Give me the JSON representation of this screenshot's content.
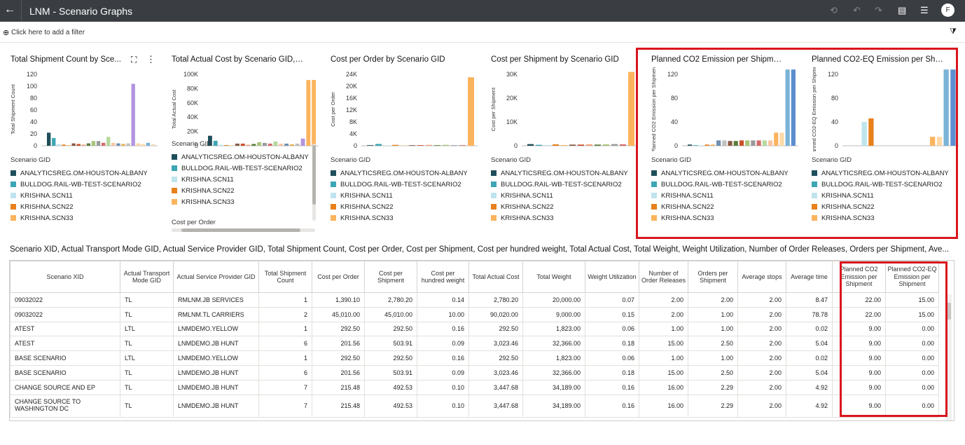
{
  "header": {
    "title": "LNM - Scenario Graphs",
    "back_icon": "←",
    "avatar": "F"
  },
  "filter": {
    "placeholder": "Click here to add a filter"
  },
  "legend_title": "Scenario GID",
  "legend_items": [
    {
      "label": "ANALYTICSREG.OM-HOUSTON-ALBANY",
      "color": "#1f4e5a"
    },
    {
      "label": "BULLDOG.RAIL-WB-TEST-SCENARIO2",
      "color": "#3ea5b5"
    },
    {
      "label": "KRISHNA.SCN11",
      "color": "#bfe4ee"
    },
    {
      "label": "KRISHNA.SCN22",
      "color": "#e8801c"
    },
    {
      "label": "KRISHNA.SCN33",
      "color": "#fbb45e"
    }
  ],
  "charts": [
    {
      "title": "Total Shipment Count by Sce...",
      "ylabel": "Total Shipment Count",
      "yticks": [
        "120",
        "100",
        "80",
        "60",
        "40",
        "20",
        "0"
      ],
      "ymax": 120,
      "values": [
        22,
        13,
        3,
        2,
        1,
        4,
        3,
        2,
        4,
        8,
        8,
        5,
        15,
        5,
        4,
        3,
        4,
        104,
        4,
        3,
        5,
        3
      ],
      "colors": [
        "#1f4e5a",
        "#3ea5b5",
        "#bfe4ee",
        "#e8801c",
        "#fbb45e",
        "#8a5a44",
        "#c94f2b",
        "#f4a07a",
        "#5a7d3a",
        "#a8c47a",
        "#9a9a9a",
        "#d46a6a",
        "#b5d99c",
        "#f7c6a3",
        "#6e8fb0",
        "#e2b04a",
        "#c0c0c0",
        "#b394e0",
        "#fcd3a0",
        "#ffd9a8",
        "#7bb3d6",
        "#f0e0c0"
      ]
    },
    {
      "title": "Total Actual Cost by Scenario GID, C...",
      "ylabel": "Total Actual Cost",
      "yticks": [
        "100K",
        "80K",
        "60K",
        "40K",
        "20K",
        "0"
      ],
      "ymax": 100000,
      "values": [
        14000,
        7000,
        1500,
        1000,
        500,
        3000,
        3000,
        1500,
        2500,
        5000,
        4000,
        3000,
        6000,
        3000,
        3000,
        2000,
        3000,
        10000,
        92000,
        92000
      ],
      "colors": [
        "#1f4e5a",
        "#3ea5b5",
        "#bfe4ee",
        "#e8801c",
        "#fbb45e",
        "#8a5a44",
        "#c94f2b",
        "#f4a07a",
        "#5a7d3a",
        "#a8c47a",
        "#9a9a9a",
        "#d46a6a",
        "#b5d99c",
        "#f7c6a3",
        "#6e8fb0",
        "#e2b04a",
        "#c0c0c0",
        "#b394e0",
        "#fbb45e",
        "#fbb45e"
      ]
    },
    {
      "title": "Cost per Order by Scenario GID",
      "ylabel": "Cost per Order",
      "yticks": [
        "24K",
        "20K",
        "16K",
        "12K",
        "8K",
        "4K",
        "0"
      ],
      "ymax": 24000,
      "values": [
        200,
        600,
        100,
        300,
        100,
        200,
        200,
        300,
        200,
        300,
        200,
        200,
        23000
      ],
      "colors": [
        "#1f4e5a",
        "#3ea5b5",
        "#bfe4ee",
        "#e8801c",
        "#fbb45e",
        "#8a5a44",
        "#c94f2b",
        "#f4a07a",
        "#5a7d3a",
        "#a8c47a",
        "#9a9a9a",
        "#d46a6a",
        "#fbb45e"
      ]
    },
    {
      "title": "Cost per Shipment by Scenario GID",
      "ylabel": "Cost per Shipment",
      "yticks": [
        "30K",
        "20K",
        "10K",
        "0"
      ],
      "ymax": 35000,
      "values": [
        700,
        400,
        300,
        600,
        300,
        500,
        500,
        600,
        500,
        600,
        700,
        600,
        31000
      ],
      "colors": [
        "#1f4e5a",
        "#3ea5b5",
        "#bfe4ee",
        "#e8801c",
        "#fbb45e",
        "#8a5a44",
        "#c94f2b",
        "#f4a07a",
        "#5a7d3a",
        "#a8c47a",
        "#9a9a9a",
        "#d46a6a",
        "#fbb45e"
      ]
    },
    {
      "title": "Planned CO2 Emission per Shipment...",
      "ylabel": "Planned CO2 Emission per Shipment",
      "yticks": [
        "120",
        "80",
        "40",
        "0"
      ],
      "ymax": 145,
      "values": [
        2,
        1,
        1,
        2,
        2,
        9,
        9,
        8,
        8,
        9,
        9,
        9,
        9,
        9,
        9,
        22,
        22,
        128,
        128
      ],
      "colors": [
        "#1f4e5a",
        "#3ea5b5",
        "#bfe4ee",
        "#e8801c",
        "#fbb45e",
        "#6e8fb0",
        "#c0c0c0",
        "#8a5a44",
        "#5a7d3a",
        "#c94f2b",
        "#a8c47a",
        "#9a9a9a",
        "#d46a6a",
        "#b5d99c",
        "#f7c6a3",
        "#fbb45e",
        "#ffd9a8",
        "#7bb3d6",
        "#5b8fd0"
      ]
    },
    {
      "title": "Planned CO2-EQ Emission per Ship...",
      "ylabel": "Planned CO2-EQ Emission per Shipment",
      "yticks": [
        "120",
        "80",
        "40",
        "0"
      ],
      "ymax": 145,
      "values": [
        0,
        0,
        40,
        46,
        0,
        0,
        0,
        0,
        0,
        0,
        0,
        0,
        15,
        15,
        128,
        128
      ],
      "colors": [
        "#1f4e5a",
        "#3ea5b5",
        "#bfe4ee",
        "#e8801c",
        "#fbb45e",
        "#6e8fb0",
        "#c0c0c0",
        "#8a5a44",
        "#5a7d3a",
        "#c94f2b",
        "#a8c47a",
        "#9a9a9a",
        "#fbb45e",
        "#ffd9a8",
        "#7bb3d6",
        "#5b8fd0"
      ]
    }
  ],
  "card2_extra_label": "Cost per Order",
  "table": {
    "title": "Scenario XID, Actual Transport Mode GID, Actual Service Provider GID, Total Shipment Count, Cost per Order, Cost per Shipment, Cost per hundred weight, Total Actual Cost, Total Weight, Weight Utilization, Number of Order Releases, Orders per Shipment, Ave...",
    "headers": [
      "Scenario XID",
      "Actual Transport Mode GID",
      "Actual Service Provider GID",
      "Total Shipment Count",
      "Cost per Order",
      "Cost per Shipment",
      "Cost per hundred weight",
      "Total Actual Cost",
      "Total Weight",
      "Weight Utilization",
      "Number of Order Releases",
      "Orders per Shipment",
      "Average stops",
      "Average time",
      "Planned CO2 Emission per Shipment",
      "Planned CO2-EQ Emission per Shipment"
    ],
    "rows": [
      [
        "09032022",
        "TL",
        "RMLNM.JB SERVICES",
        "1",
        "1,390.10",
        "2,780.20",
        "0.14",
        "2,780.20",
        "20,000.00",
        "0.07",
        "2.00",
        "2.00",
        "2.00",
        "8.47",
        "22.00",
        "15.00"
      ],
      [
        "09032022",
        "TL",
        "RMLNM.TL CARRIERS",
        "2",
        "45,010.00",
        "45,010.00",
        "10.00",
        "90,020.00",
        "9,000.00",
        "0.15",
        "2.00",
        "1.00",
        "2.00",
        "78.78",
        "22.00",
        "15.00"
      ],
      [
        "ATEST",
        "LTL",
        "LNMDEMO.YELLOW",
        "1",
        "292.50",
        "292.50",
        "0.16",
        "292.50",
        "1,823.00",
        "0.06",
        "1.00",
        "1.00",
        "2.00",
        "0.02",
        "9.00",
        "0.00"
      ],
      [
        "ATEST",
        "TL",
        "LNMDEMO.JB HUNT",
        "6",
        "201.56",
        "503.91",
        "0.09",
        "3,023.46",
        "32,366.00",
        "0.18",
        "15.00",
        "2.50",
        "2.00",
        "5.04",
        "9.00",
        "0.00"
      ],
      [
        "BASE SCENARIO",
        "LTL",
        "LNMDEMO.YELLOW",
        "1",
        "292.50",
        "292.50",
        "0.16",
        "292.50",
        "1,823.00",
        "0.06",
        "1.00",
        "1.00",
        "2.00",
        "0.02",
        "9.00",
        "0.00"
      ],
      [
        "BASE SCENARIO",
        "TL",
        "LNMDEMO.JB HUNT",
        "6",
        "201.56",
        "503.91",
        "0.09",
        "3,023.46",
        "32,366.00",
        "0.18",
        "15.00",
        "2.50",
        "2.00",
        "5.04",
        "9.00",
        "0.00"
      ],
      [
        "CHANGE SOURCE AND EP",
        "TL",
        "LNMDEMO.JB HUNT",
        "7",
        "215.48",
        "492.53",
        "0.10",
        "3,447.68",
        "34,189.00",
        "0.16",
        "16.00",
        "2.29",
        "2.00",
        "4.92",
        "9.00",
        "0.00"
      ],
      [
        "CHANGE SOURCE TO WASHINGTON DC",
        "TL",
        "LNMDEMO.JB HUNT",
        "7",
        "215.48",
        "492.53",
        "0.10",
        "3,447.68",
        "34,189.00",
        "0.16",
        "16.00",
        "2.29",
        "2.00",
        "4.92",
        "9.00",
        "0.00"
      ]
    ]
  }
}
